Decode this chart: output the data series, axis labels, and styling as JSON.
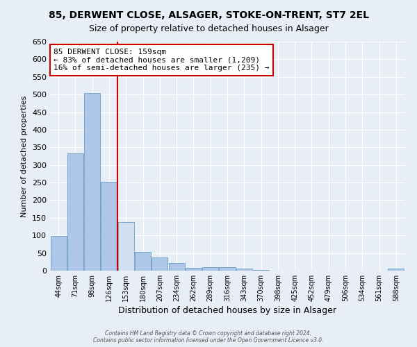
{
  "title": "85, DERWENT CLOSE, ALSAGER, STOKE-ON-TRENT, ST7 2EL",
  "subtitle": "Size of property relative to detached houses in Alsager",
  "xlabel": "Distribution of detached houses by size in Alsager",
  "ylabel": "Number of detached properties",
  "categories": [
    "44sqm",
    "71sqm",
    "98sqm",
    "126sqm",
    "153sqm",
    "180sqm",
    "207sqm",
    "234sqm",
    "262sqm",
    "289sqm",
    "316sqm",
    "343sqm",
    "370sqm",
    "398sqm",
    "425sqm",
    "452sqm",
    "479sqm",
    "506sqm",
    "534sqm",
    "561sqm",
    "588sqm"
  ],
  "values": [
    98,
    333,
    505,
    253,
    138,
    54,
    38,
    21,
    8,
    10,
    10,
    5,
    2,
    0,
    0,
    0,
    0,
    0,
    0,
    0,
    5
  ],
  "bar_color": "#aec6e8",
  "bar_edgecolor": "#6a9fc0",
  "highlight_index": 4,
  "highlight_color": "#d0e0f0",
  "annotation_box_text": "85 DERWENT CLOSE: 159sqm\n← 83% of detached houses are smaller (1,209)\n16% of semi-detached houses are larger (235) →",
  "vline_color": "#cc0000",
  "vline_xval": 4.0,
  "ylim": [
    0,
    650
  ],
  "yticks": [
    0,
    50,
    100,
    150,
    200,
    250,
    300,
    350,
    400,
    450,
    500,
    550,
    600,
    650
  ],
  "background_color": "#e8eef5",
  "grid_color": "#ffffff",
  "footer_line1": "Contains HM Land Registry data © Crown copyright and database right 2024.",
  "footer_line2": "Contains public sector information licensed under the Open Government Licence v3.0.",
  "title_fontsize": 10,
  "subtitle_fontsize": 9,
  "fig_facecolor": "#e8eef5"
}
